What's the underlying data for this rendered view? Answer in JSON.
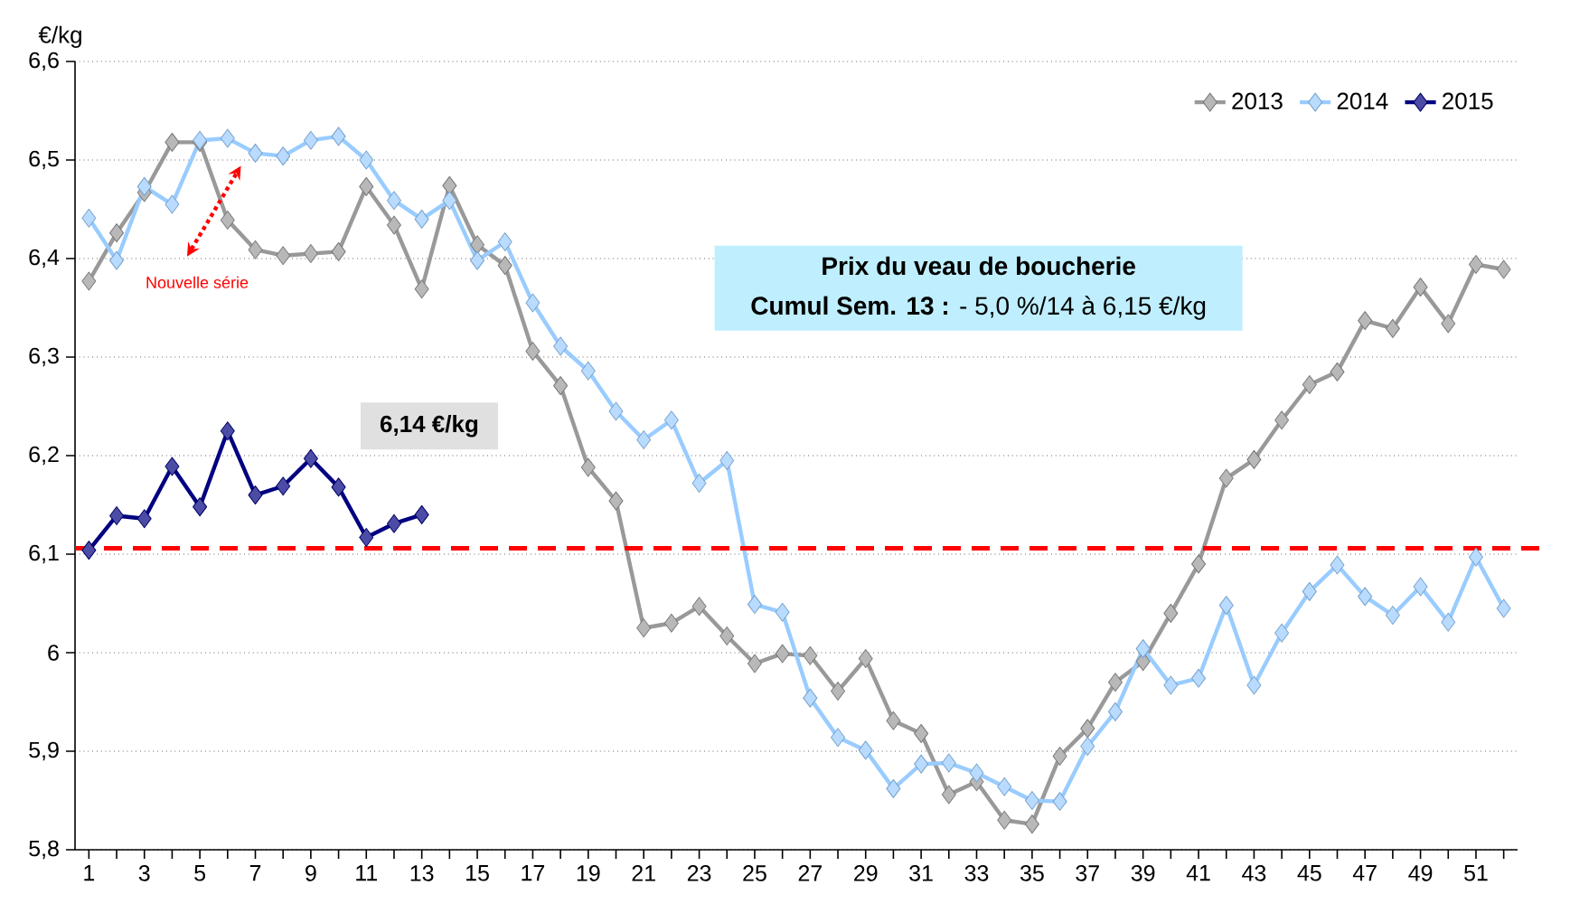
{
  "chart_data": {
    "type": "line",
    "title": "Prix du veau de boucherie",
    "subtitle": "**Cumul Sem. 13 :** - 5,0 %/14 à 6,15 €/kg",
    "ylabel": "€/kg",
    "annotations": [
      "6,14 €/kg",
      "Nouvelle série"
    ],
    "categories": [
      "1",
      null,
      "3",
      null,
      "5",
      null,
      "7",
      null,
      "9",
      null,
      "11",
      null,
      "13",
      null,
      "15",
      null,
      "17",
      null,
      "19",
      null,
      "21",
      null,
      "23",
      null,
      "25",
      null,
      "27",
      null,
      "29",
      null,
      "31",
      null,
      "33",
      null,
      "35",
      null,
      "37",
      null,
      "39",
      null,
      "41",
      null,
      "43",
      null,
      "45",
      null,
      "47",
      null,
      "49",
      null,
      "51",
      null
    ],
    "series": [
      {
        "name": "2013",
        "color": "#999999",
        "values": [
          6.377,
          6.426,
          6.467,
          6.518,
          6.518,
          6.439,
          6.409,
          6.403,
          6.405,
          6.407,
          6.473,
          6.434,
          6.369,
          6.474,
          6.414,
          6.393,
          6.306,
          6.271,
          6.188,
          6.154,
          6.025,
          6.03,
          6.047,
          6.017,
          5.989,
          5.999,
          5.997,
          5.961,
          5.994,
          5.931,
          5.918,
          5.856,
          5.869,
          5.83,
          5.826,
          5.895,
          5.923,
          5.97,
          5.991,
          6.04,
          6.09,
          6.177,
          6.196,
          6.236,
          6.272,
          6.285,
          6.337,
          6.329,
          6.371,
          6.334,
          6.394,
          6.389
        ]
      },
      {
        "name": "2014",
        "color": "#99ccff",
        "values": [
          6.441,
          6.398,
          6.473,
          6.455,
          6.52,
          6.522,
          6.507,
          6.504,
          6.52,
          6.524,
          6.5,
          6.459,
          6.44,
          6.459,
          6.398,
          6.417,
          6.355,
          6.311,
          6.286,
          6.245,
          6.216,
          6.236,
          6.172,
          6.195,
          6.049,
          6.041,
          5.954,
          5.914,
          5.901,
          5.862,
          5.887,
          5.888,
          5.878,
          5.864,
          5.85,
          5.849,
          5.905,
          5.94,
          6.004,
          5.967,
          5.974,
          6.048,
          5.967,
          6.02,
          6.062,
          6.089,
          6.057,
          6.038,
          6.067,
          6.031,
          6.097,
          6.045
        ]
      },
      {
        "name": "2015",
        "color": "#000080",
        "values": [
          6.104,
          6.139,
          6.136,
          6.189,
          6.148,
          6.225,
          6.16,
          6.169,
          6.197,
          6.168,
          6.117,
          6.131,
          6.14,
          null,
          null,
          null,
          null,
          null,
          null,
          null,
          null,
          null,
          null,
          null,
          null,
          null,
          null,
          null,
          null,
          null,
          null,
          null,
          null,
          null,
          null,
          null,
          null,
          null,
          null,
          null,
          null,
          null,
          null,
          null,
          null,
          null,
          null,
          null,
          null,
          null,
          null,
          null
        ]
      }
    ],
    "ylim": [
      5.8,
      6.6
    ],
    "yticks": [
      {
        "value": 5.8,
        "label": "5,8"
      },
      {
        "value": 5.9,
        "label": "5,9"
      },
      6,
      {
        "value": 6.1,
        "label": "6,1"
      },
      {
        "value": 6.2,
        "label": "6,2"
      },
      {
        "value": 6.3,
        "label": "6,3"
      },
      {
        "value": 6.4,
        "label": "6,4"
      },
      {
        "value": 6.5,
        "label": "6,5"
      },
      {
        "value": 6.6,
        "label": "6,6"
      }
    ],
    "ref_lines": [
      {
        "axis": "y",
        "value": 6.106,
        "color": "#ff0000",
        "line_style": "dashed"
      }
    ],
    "grid": "y",
    "legend": "top right",
    "marker": "diamond",
    "line_style": "solid"
  }
}
